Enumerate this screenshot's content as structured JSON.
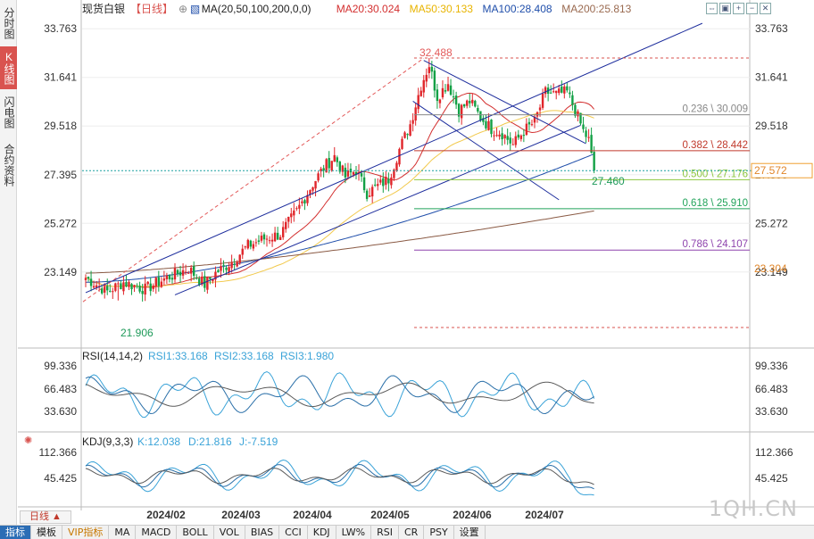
{
  "side_tabs": [
    {
      "label": "分时图",
      "active": false
    },
    {
      "label": "K线图",
      "active": true
    },
    {
      "label": "闪电图",
      "active": false
    },
    {
      "label": "合约资料",
      "active": false
    }
  ],
  "header": {
    "symbol": "现货白银",
    "period": "【日线】",
    "ma_params": "MA(20,50,100,200,0,0)",
    "ma20": "MA20:30.024",
    "ma50": "MA50:30.133",
    "ma100": "MA100:28.408",
    "ma200": "MA200:25.813"
  },
  "toolbar": [
    "⇔",
    "▣",
    "+",
    "−",
    "✕"
  ],
  "colors": {
    "up": "#e0252a",
    "down": "#12a045",
    "ma20": "#d32f2f",
    "ma50": "#f2c94c",
    "ma100": "#1f4eaa",
    "ma200": "#8a5a44",
    "channel": "#1c2c9c",
    "grid": "#dddddd"
  },
  "price_axis": {
    "ticks": [
      "33.763",
      "31.641",
      "29.518",
      "27.395",
      "25.272",
      "23.149"
    ],
    "tick_values": [
      33.763,
      31.641,
      29.518,
      27.395,
      25.272,
      23.149
    ],
    "current_price": "27.572",
    "ma200_price": "23.304"
  },
  "annotations": {
    "high": "32.488",
    "low": "21.906",
    "last_low": "27.460"
  },
  "fib": [
    {
      "label": "0.236 \\ 30.009",
      "value": 30.009,
      "color": "#888888"
    },
    {
      "label": "0.382 \\ 28.442",
      "value": 28.442,
      "color": "#c0392b"
    },
    {
      "label": "0.500 \\ 27.176",
      "value": 27.176,
      "color": "#8dc63f"
    },
    {
      "label": "0.618 \\ 25.910",
      "value": 25.91,
      "color": "#21a35a"
    },
    {
      "label": "0.786 \\ 24.107",
      "value": 24.107,
      "color": "#8e44ad"
    }
  ],
  "rsi": {
    "title": "RSI(14,14,2)",
    "rsi1": "RSI1:33.168",
    "rsi2": "RSI2:33.168",
    "rsi3": "RSI3:1.980",
    "ticks": [
      "99.336",
      "66.483",
      "33.630"
    ]
  },
  "kdj": {
    "title": "KDJ(9,3,3)",
    "k": "K:12.038",
    "d": "D:21.816",
    "j": "J:-7.519",
    "ticks": [
      "112.366",
      "45.425"
    ]
  },
  "chart_data": {
    "type": "candlestick",
    "instrument": "现货白银",
    "period": "日线",
    "x_labels": [
      "2024/02",
      "2024/03",
      "2024/04",
      "2024/05",
      "2024/06",
      "2024/07"
    ],
    "ylim": [
      21.0,
      34.2
    ],
    "y_ticks": [
      33.763,
      31.641,
      29.518,
      27.395,
      25.272,
      23.149
    ],
    "close_keypoints": [
      [
        0,
        22.9
      ],
      [
        8,
        22.3
      ],
      [
        14,
        22.7
      ],
      [
        22,
        22.4
      ],
      [
        30,
        22.9
      ],
      [
        38,
        23.3
      ],
      [
        44,
        22.6
      ],
      [
        48,
        23.1
      ],
      [
        54,
        23.6
      ],
      [
        60,
        24.3
      ],
      [
        66,
        24.6
      ],
      [
        72,
        24.8
      ],
      [
        78,
        25.8
      ],
      [
        84,
        27.0
      ],
      [
        88,
        27.7
      ],
      [
        92,
        28.2
      ],
      [
        96,
        27.3
      ],
      [
        100,
        27.6
      ],
      [
        104,
        26.6
      ],
      [
        108,
        26.9
      ],
      [
        112,
        27.2
      ],
      [
        116,
        28.5
      ],
      [
        120,
        29.6
      ],
      [
        124,
        31.3
      ],
      [
        127,
        32.2
      ],
      [
        130,
        30.8
      ],
      [
        134,
        31.4
      ],
      [
        138,
        30.2
      ],
      [
        142,
        30.6
      ],
      [
        146,
        29.9
      ],
      [
        150,
        29.4
      ],
      [
        154,
        29.2
      ],
      [
        158,
        28.7
      ],
      [
        162,
        29.3
      ],
      [
        166,
        29.7
      ],
      [
        170,
        31.0
      ],
      [
        174,
        30.9
      ],
      [
        178,
        31.0
      ],
      [
        181,
        30.2
      ],
      [
        184,
        29.3
      ],
      [
        186,
        28.9
      ],
      [
        188,
        27.5
      ]
    ],
    "ma": [
      {
        "name": "MA20",
        "last": 30.024
      },
      {
        "name": "MA50",
        "last": 30.133
      },
      {
        "name": "MA100",
        "last": 28.408
      },
      {
        "name": "MA200",
        "last": 25.813
      }
    ],
    "high": 32.488,
    "low": 21.906,
    "last_low": 27.46,
    "current": 27.572
  },
  "bottom_tabs": [
    {
      "label": "指标",
      "active": true,
      "vip": false
    },
    {
      "label": "模板",
      "active": false,
      "vip": false
    },
    {
      "label": "VIP指标",
      "active": false,
      "vip": true
    },
    {
      "label": "MA",
      "active": false,
      "vip": false
    },
    {
      "label": "MACD",
      "active": false,
      "vip": false
    },
    {
      "label": "BOLL",
      "active": false,
      "vip": false
    },
    {
      "label": "VOL",
      "active": false,
      "vip": false
    },
    {
      "label": "BIAS",
      "active": false,
      "vip": false
    },
    {
      "label": "CCI",
      "active": false,
      "vip": false
    },
    {
      "label": "KDJ",
      "active": false,
      "vip": false
    },
    {
      "label": "LW%",
      "active": false,
      "vip": false
    },
    {
      "label": "RSI",
      "active": false,
      "vip": false
    },
    {
      "label": "CR",
      "active": false,
      "vip": false
    },
    {
      "label": "PSY",
      "active": false,
      "vip": false
    },
    {
      "label": "设置",
      "active": false,
      "vip": false
    }
  ],
  "period_button": "日线",
  "watermark": "1QH.CN"
}
